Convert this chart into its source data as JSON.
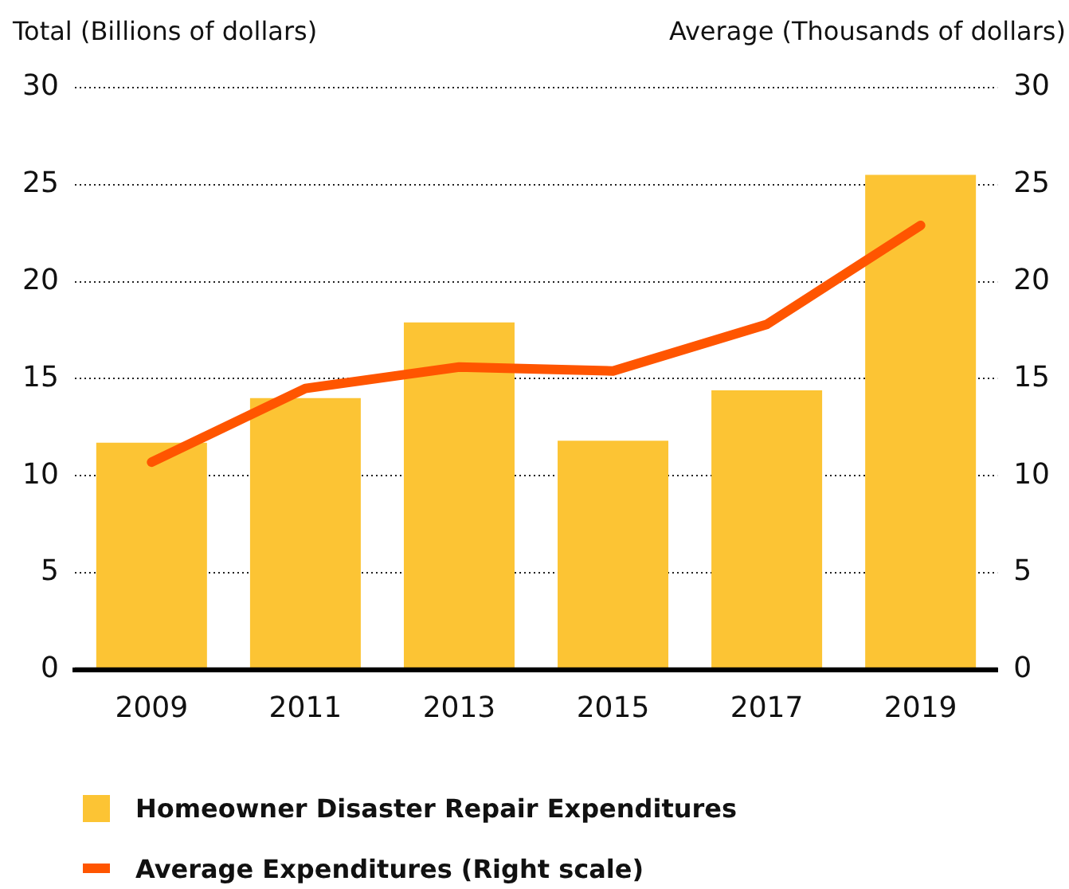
{
  "chart_data": {
    "type": "bar",
    "ylabel": "Total (Billions of dollars)",
    "y2label": "Average (Thousands of dollars)",
    "categories": [
      "2009",
      "2011",
      "2013",
      "2015",
      "2017",
      "2019"
    ],
    "series": [
      {
        "name": "Homeowner Disaster Repair Expenditures",
        "color": "#fcc434",
        "values": [
          11.7,
          14.0,
          17.9,
          11.8,
          14.4,
          25.5
        ]
      },
      {
        "name": "Average Expenditures (Right scale)",
        "type": "line",
        "axis": "y2",
        "color": "#ff5500",
        "values": [
          10.7,
          14.5,
          15.6,
          15.4,
          17.8,
          22.9
        ]
      }
    ],
    "ylim": [
      0,
      30
    ],
    "yticks": [
      0,
      5,
      10,
      15,
      20,
      25,
      30
    ],
    "y2lim": [
      0,
      30
    ],
    "y2ticks": [
      0,
      5,
      10,
      15,
      20,
      25,
      30
    ],
    "grid": "y",
    "legend": "bottom",
    "marker": "none"
  }
}
